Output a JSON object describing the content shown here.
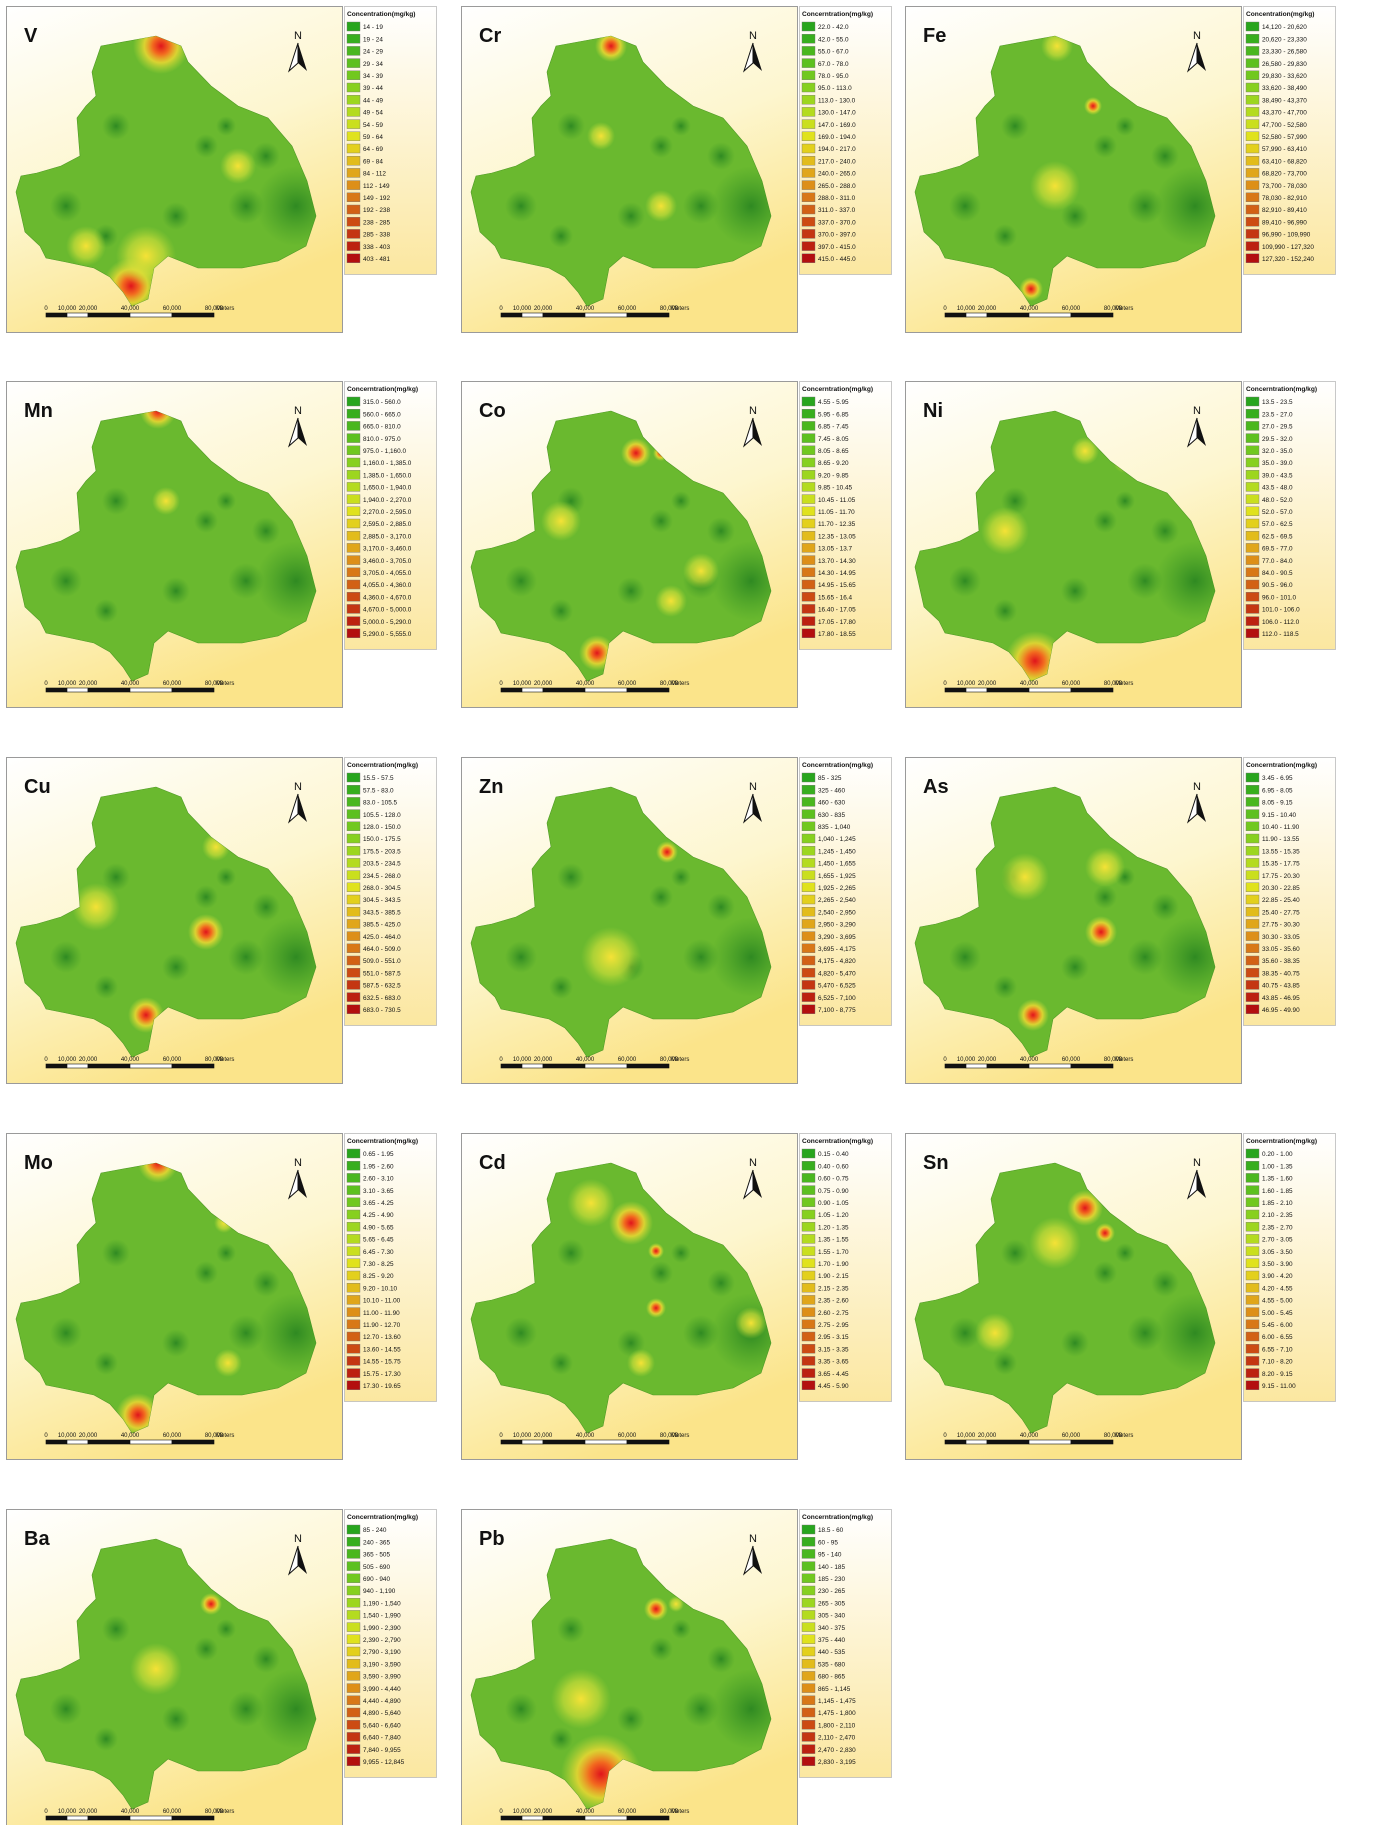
{
  "north_label": "N",
  "scale_bar": {
    "labels": [
      "0",
      "10,000",
      "20,000",
      "40,000",
      "60,000",
      "80,000",
      "Meters"
    ]
  },
  "panels": [
    {
      "element": "V",
      "legend_title": "Concentration(mg/kg)",
      "legend": [
        "14 - 19",
        "19 - 24",
        "24 - 29",
        "29 - 34",
        "34 - 39",
        "39 - 44",
        "44 - 49",
        "49 - 54",
        "54 - 59",
        "59 - 64",
        "64 - 69",
        "69 - 84",
        "84 - 112",
        "112 - 149",
        "149 - 192",
        "192 - 238",
        "238 - 285",
        "285 - 338",
        "338 - 403",
        "403 - 481"
      ]
    },
    {
      "element": "Cr",
      "legend_title": "Concerntration(mg/kg)",
      "legend": [
        "22.0 - 42.0",
        "42.0 - 55.0",
        "55.0 - 67.0",
        "67.0 - 78.0",
        "78.0 - 95.0",
        "95.0 - 113.0",
        "113.0 - 130.0",
        "130.0 - 147.0",
        "147.0 - 169.0",
        "169.0 - 194.0",
        "194.0 - 217.0",
        "217.0 - 240.0",
        "240.0 - 265.0",
        "265.0 - 288.0",
        "288.0 - 311.0",
        "311.0 - 337.0",
        "337.0 - 370.0",
        "370.0 - 397.0",
        "397.0 - 415.0",
        "415.0 - 445.0"
      ]
    },
    {
      "element": "Fe",
      "legend_title": "Concentration(mg/kg)",
      "legend": [
        "14,120 - 20,620",
        "20,620 - 23,330",
        "23,330 - 26,580",
        "26,580 - 29,830",
        "29,830 - 33,620",
        "33,620 - 38,490",
        "38,490 - 43,370",
        "43,370 - 47,700",
        "47,700 - 52,580",
        "52,580 - 57,990",
        "57,990 - 63,410",
        "63,410 - 68,820",
        "68,820 - 73,700",
        "73,700 - 78,030",
        "78,030 - 82,910",
        "82,910 - 89,410",
        "89,410 - 96,990",
        "96,990 - 109,990",
        "109,990 - 127,320",
        "127,320 - 152,240"
      ]
    },
    {
      "element": "Mn",
      "legend_title": "Concerntration(mg/kg)",
      "legend": [
        "315.0 - 560.0",
        "560.0 - 665.0",
        "665.0 - 810.0",
        "810.0 - 975.0",
        "975.0 - 1,160.0",
        "1,160.0 - 1,385.0",
        "1,385.0 - 1,650.0",
        "1,650.0 - 1,940.0",
        "1,940.0 - 2,270.0",
        "2,270.0 - 2,595.0",
        "2,595.0 - 2,885.0",
        "2,885.0 - 3,170.0",
        "3,170.0 - 3,460.0",
        "3,460.0 - 3,705.0",
        "3,705.0 - 4,055.0",
        "4,055.0 - 4,360.0",
        "4,360.0 - 4,670.0",
        "4,670.0 - 5,000.0",
        "5,000.0 - 5,290.0",
        "5,290.0 - 5,555.0"
      ]
    },
    {
      "element": "Co",
      "legend_title": "Concerntration(mg/kg)",
      "legend": [
        "4.55 - 5.95",
        "5.95 - 6.85",
        "6.85 - 7.45",
        "7.45 - 8.05",
        "8.05 - 8.65",
        "8.65 - 9.20",
        "9.20 - 9.85",
        "9.85 - 10.45",
        "10.45 - 11.05",
        "11.05 - 11.70",
        "11.70 - 12.35",
        "12.35 - 13.05",
        "13.05 - 13.7",
        "13.70 - 14.30",
        "14.30 - 14.95",
        "14.95 - 15.65",
        "15.65 - 16.4",
        "16.40 - 17.05",
        "17.05 - 17.80",
        "17.80 - 18.55"
      ]
    },
    {
      "element": "Ni",
      "legend_title": "Concerntration(mg/kg)",
      "legend": [
        "13.5 - 23.5",
        "23.5 - 27.0",
        "27.0 - 29.5",
        "29.5 - 32.0",
        "32.0 - 35.0",
        "35.0 - 39.0",
        "39.0 - 43.5",
        "43.5 - 48.0",
        "48.0 - 52.0",
        "52.0 - 57.0",
        "57.0 - 62.5",
        "62.5 - 69.5",
        "69.5 - 77.0",
        "77.0 - 84.0",
        "84.0 - 90.5",
        "90.5 - 96.0",
        "96.0 - 101.0",
        "101.0 - 106.0",
        "106.0 - 112.0",
        "112.0 - 118.5"
      ]
    },
    {
      "element": "Cu",
      "legend_title": "Concerntration(mg/kg)",
      "legend": [
        "15.5 - 57.5",
        "57.5 - 83.0",
        "83.0 - 105.5",
        "105.5 - 128.0",
        "128.0 - 150.0",
        "150.0 - 175.5",
        "175.5 - 203.5",
        "203.5 - 234.5",
        "234.5 - 268.0",
        "268.0 - 304.5",
        "304.5 - 343.5",
        "343.5 - 385.5",
        "385.5 - 425.0",
        "425.0 - 464.0",
        "464.0 - 509.0",
        "509.0 - 551.0",
        "551.0 - 587.5",
        "587.5 - 632.5",
        "632.5 - 683.0",
        "683.0 - 730.5"
      ]
    },
    {
      "element": "Zn",
      "legend_title": "Concerntration(mg/kg)",
      "legend": [
        "85 - 325",
        "325 - 460",
        "460 - 630",
        "630 - 835",
        "835 - 1,040",
        "1,040 - 1,245",
        "1,245 - 1,450",
        "1,450 - 1,655",
        "1,655 - 1,925",
        "1,925 - 2,265",
        "2,265 - 2,540",
        "2,540 - 2,950",
        "2,950 - 3,290",
        "3,290 - 3,695",
        "3,695 - 4,175",
        "4,175 - 4,820",
        "4,820 - 5,470",
        "5,470 - 6,525",
        "6,525 - 7,100",
        "7,100 - 8,775"
      ]
    },
    {
      "element": "As",
      "legend_title": "Concerntration(mg/kg)",
      "legend": [
        "3.45 - 6.95",
        "6.95 - 8.05",
        "8.05 - 9.15",
        "9.15 - 10.40",
        "10.40 - 11.90",
        "11.90 - 13.55",
        "13.55 - 15.35",
        "15.35 - 17.75",
        "17.75 - 20.30",
        "20.30 - 22.85",
        "22.85 - 25.40",
        "25.40 - 27.75",
        "27.75 - 30.30",
        "30.30 - 33.05",
        "33.05 - 35.60",
        "35.60 - 38.35",
        "38.35 - 40.75",
        "40.75 - 43.85",
        "43.85 - 46.95",
        "46.95 - 49.90"
      ]
    },
    {
      "element": "Mo",
      "legend_title": "Concerntration(mg/kg)",
      "legend": [
        "0.65 - 1.95",
        "1.95 - 2.60",
        "2.60 - 3.10",
        "3.10 - 3.65",
        "3.65 - 4.25",
        "4.25 - 4.90",
        "4.90 - 5.65",
        "5.65 - 6.45",
        "6.45 - 7.30",
        "7.30 - 8.25",
        "8.25 - 9.20",
        "9.20 - 10.10",
        "10.10 - 11.00",
        "11.00 - 11.90",
        "11.90 - 12.70",
        "12.70 - 13.60",
        "13.60 - 14.55",
        "14.55 - 15.75",
        "15.75 - 17.30",
        "17.30 - 19.65"
      ]
    },
    {
      "element": "Cd",
      "legend_title": "Concerntration(mg/kg)",
      "legend": [
        "0.15 - 0.40",
        "0.40 - 0.60",
        "0.60 - 0.75",
        "0.75 - 0.90",
        "0.90 - 1.05",
        "1.05 - 1.20",
        "1.20 - 1.35",
        "1.35 - 1.55",
        "1.55 - 1.70",
        "1.70 - 1.90",
        "1.90 - 2.15",
        "2.15 - 2.35",
        "2.35 - 2.60",
        "2.60 - 2.75",
        "2.75 - 2.95",
        "2.95 - 3.15",
        "3.15 - 3.35",
        "3.35 - 3.65",
        "3.65 - 4.45",
        "4.45 - 5.90"
      ]
    },
    {
      "element": "Sn",
      "legend_title": "Concerntration(mg/kg)",
      "legend": [
        "0.20 - 1.00",
        "1.00 - 1.35",
        "1.35 - 1.60",
        "1.60 - 1.85",
        "1.85 - 2.10",
        "2.10 - 2.35",
        "2.35 - 2.70",
        "2.70 - 3.05",
        "3.05 - 3.50",
        "3.50 - 3.90",
        "3.90 - 4.20",
        "4.20 - 4.55",
        "4.55 - 5.00",
        "5.00 - 5.45",
        "5.45 - 6.00",
        "6.00 - 6.55",
        "6.55 - 7.10",
        "7.10 - 8.20",
        "8.20 - 9.15",
        "9.15 - 11.00"
      ]
    },
    {
      "element": "Ba",
      "legend_title": "Concerntration(mg/kg)",
      "legend": [
        "85 - 240",
        "240 - 365",
        "365 - 505",
        "505 - 690",
        "690 - 940",
        "940 - 1,190",
        "1,190 - 1,540",
        "1,540 - 1,990",
        "1,990 - 2,390",
        "2,390 - 2,790",
        "2,790 - 3,190",
        "3,190 - 3,590",
        "3,590 - 3,990",
        "3,990 - 4,440",
        "4,440 - 4,890",
        "4,890 - 5,640",
        "5,640 - 6,640",
        "6,640 - 7,840",
        "7,840 - 9,955",
        "9,955 - 12,845"
      ]
    },
    {
      "element": "Pb",
      "legend_title": "Concerntration(mg/kg)",
      "legend": [
        "18.5 - 60",
        "60 - 95",
        "95 - 140",
        "140 - 185",
        "185 - 230",
        "230 - 265",
        "265 - 305",
        "305 - 340",
        "340 - 375",
        "375 - 440",
        "440 - 535",
        "535 - 680",
        "680 - 865",
        "865 - 1,145",
        "1,145 - 1,475",
        "1,475 - 1,800",
        "1,800 - 2,110",
        "2,110 - 2,470",
        "2,470 - 2,830",
        "2,830 - 3,195"
      ]
    }
  ]
}
